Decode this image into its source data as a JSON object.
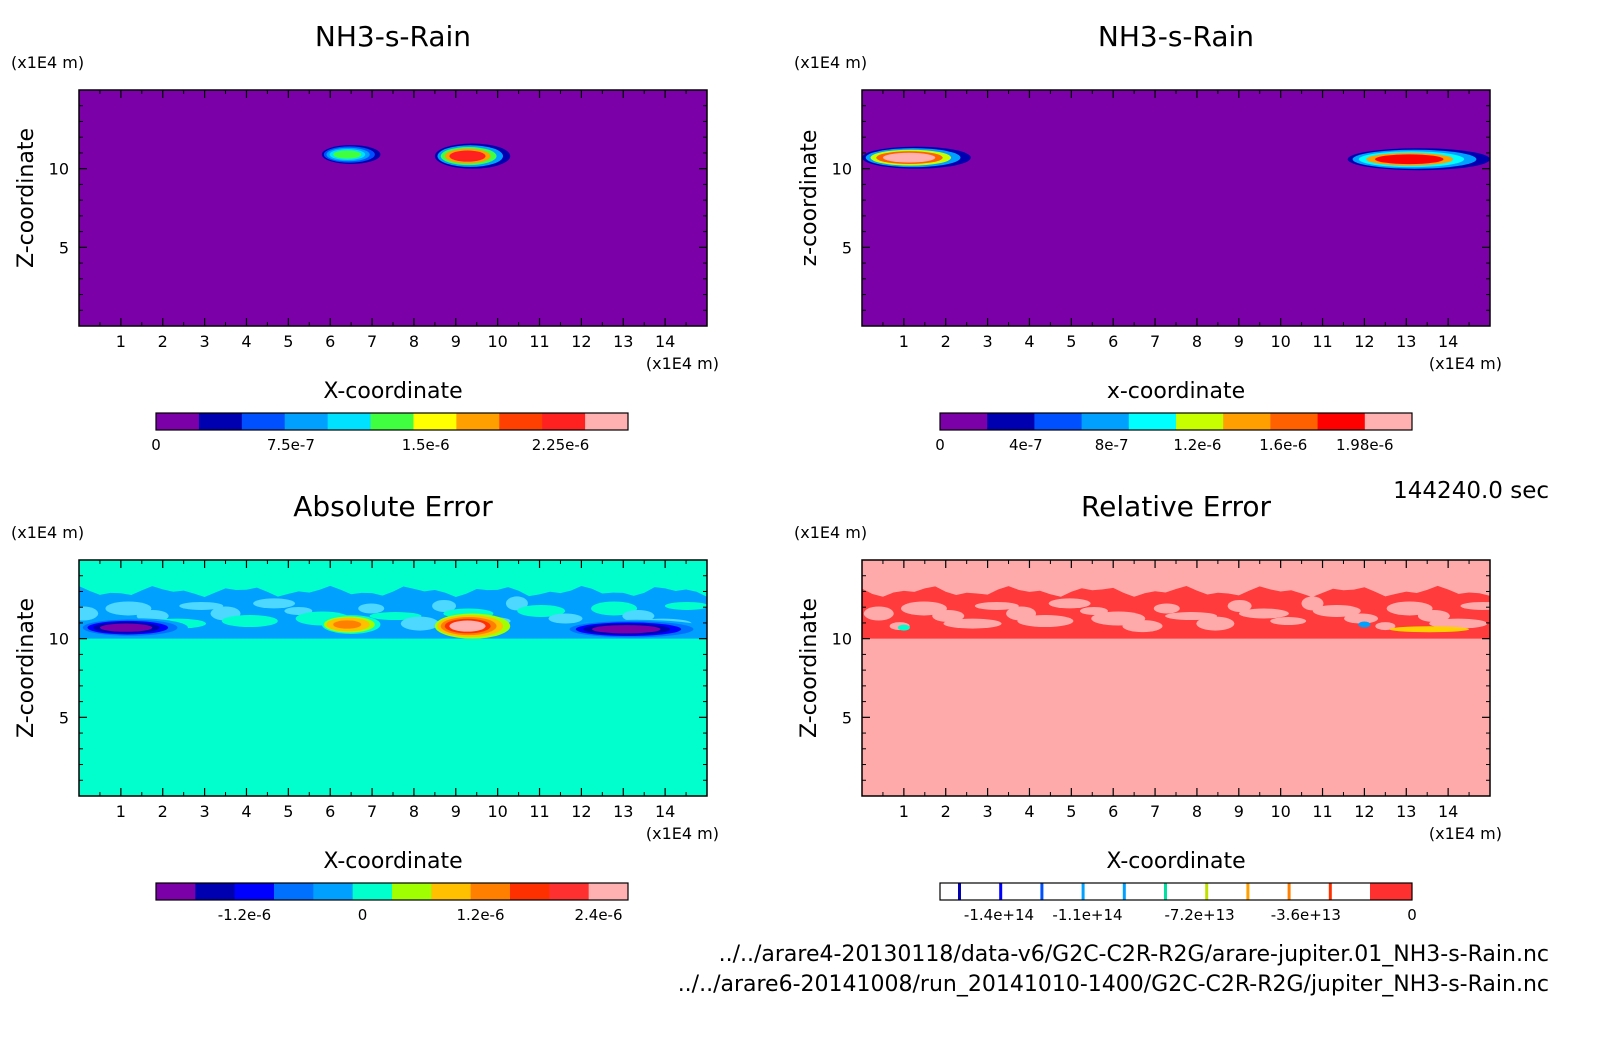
{
  "figure": {
    "timestamp": "144240.0 sec",
    "files": [
      "../../arare4-20130118/data-v6/G2C-C2R-R2G/arare-jupiter.01_NH3-s-Rain.nc",
      "../../arare6-20141008/run_20141010-1400/G2C-C2R-R2G/jupiter_NH3-s-Rain.nc"
    ]
  },
  "chart_data": [
    {
      "type": "heatmap",
      "title": "NH3-s-Rain",
      "xlabel": "X-coordinate",
      "ylabel": "Z-coordinate",
      "xunit": "(x1E4 m)",
      "yunit": "(x1E4 m)",
      "xlim": [
        0,
        15
      ],
      "ylim": [
        0,
        15
      ],
      "xticks": [
        "1",
        "2",
        "3",
        "4",
        "5",
        "6",
        "7",
        "8",
        "9",
        "10",
        "11",
        "12",
        "13",
        "14"
      ],
      "yticks": [
        "5",
        "10"
      ],
      "background": "#7b00a8",
      "colorbar": {
        "colors": [
          "#7b00a8",
          "#0000b0",
          "#0050ff",
          "#00a0ff",
          "#00e0ff",
          "#40ff40",
          "#ffff00",
          "#ffa000",
          "#ff4000",
          "#ff2020",
          "#ffb0b0"
        ],
        "labels": [
          "0",
          "7.5e-7",
          "1.5e-6",
          "2.25e-6"
        ],
        "label_values": [
          0,
          7.5e-07,
          1.5e-06,
          2.25e-06
        ],
        "range": [
          0,
          2.625e-06
        ]
      },
      "features": [
        {
          "kind": "plume",
          "x0": 5.8,
          "x1": 7.2,
          "z": 10.9,
          "thickness": 0.6,
          "peak": 1.2e-06
        },
        {
          "kind": "plume",
          "x0": 8.5,
          "x1": 10.3,
          "z": 10.8,
          "thickness": 0.8,
          "peak": 2.3e-06
        }
      ]
    },
    {
      "type": "heatmap",
      "title": "NH3-s-Rain",
      "xlabel": "x-coordinate",
      "ylabel": "z-coordinate",
      "xunit": "(x1E4 m)",
      "yunit": "(x1E4 m)",
      "xlim": [
        0,
        15
      ],
      "ylim": [
        0,
        15
      ],
      "xticks": [
        "1",
        "2",
        "3",
        "4",
        "5",
        "6",
        "7",
        "8",
        "9",
        "10",
        "11",
        "12",
        "13",
        "14"
      ],
      "yticks": [
        "5",
        "10"
      ],
      "background": "#7b00a8",
      "colorbar": {
        "colors": [
          "#7b00a8",
          "#0000b0",
          "#0050ff",
          "#00a0ff",
          "#00ffff",
          "#c8ff00",
          "#ffa000",
          "#ff6000",
          "#ff0000",
          "#ffb0b0"
        ],
        "labels": [
          "0",
          "4e-7",
          "8e-7",
          "1.2e-6",
          "1.6e-6",
          "1.98e-6"
        ],
        "label_values": [
          0,
          4e-07,
          8e-07,
          1.2e-06,
          1.6e-06,
          1.98e-06
        ],
        "range": [
          0,
          2.2e-06
        ]
      },
      "features": [
        {
          "kind": "plume",
          "x0": 0.0,
          "x1": 2.6,
          "z": 10.7,
          "thickness": 0.7,
          "peak": 2e-06
        },
        {
          "kind": "plume",
          "x0": 11.6,
          "x1": 15.0,
          "z": 10.6,
          "thickness": 0.7,
          "peak": 1.8e-06
        }
      ]
    },
    {
      "type": "heatmap",
      "title": "Absolute Error",
      "xlabel": "X-coordinate",
      "ylabel": "Z-coordinate",
      "xunit": "(x1E4 m)",
      "yunit": "(x1E4 m)",
      "xlim": [
        0,
        15
      ],
      "ylim": [
        0,
        15
      ],
      "xticks": [
        "1",
        "2",
        "3",
        "4",
        "5",
        "6",
        "7",
        "8",
        "9",
        "10",
        "11",
        "12",
        "13",
        "14"
      ],
      "yticks": [
        "5",
        "10"
      ],
      "background": "#00ffcc",
      "band": {
        "z0": 10.0,
        "z1": 13.0,
        "color": "#00a0ff",
        "secondary": "#0070ff"
      },
      "colorbar": {
        "colors": [
          "#7b00a8",
          "#0000b0",
          "#0000ff",
          "#0070ff",
          "#00a0ff",
          "#00ffcc",
          "#a0ff00",
          "#ffc000",
          "#ff8000",
          "#ff3000",
          "#ff3030",
          "#ffb0b0"
        ],
        "labels": [
          "-1.2e-6",
          "0",
          "1.2e-6",
          "2.4e-6"
        ],
        "label_values": [
          -1.2e-06,
          0,
          1.2e-06,
          2.4e-06
        ],
        "range": [
          -2.1e-06,
          2.7e-06
        ]
      },
      "features": [
        {
          "kind": "plume",
          "x0": 0.0,
          "x1": 2.6,
          "z": 10.7,
          "thickness": 0.6,
          "peak": -2e-06
        },
        {
          "kind": "plume",
          "x0": 11.6,
          "x1": 15.0,
          "z": 10.6,
          "thickness": 0.6,
          "peak": -1.8e-06
        },
        {
          "kind": "plume",
          "x0": 5.8,
          "x1": 7.2,
          "z": 10.9,
          "thickness": 0.6,
          "peak": 1.2e-06
        },
        {
          "kind": "plume",
          "x0": 8.5,
          "x1": 10.3,
          "z": 10.8,
          "thickness": 0.8,
          "peak": 2.3e-06
        }
      ]
    },
    {
      "type": "heatmap",
      "title": "Relative Error",
      "xlabel": "X-coordinate",
      "ylabel": "Z-coordinate",
      "xunit": "(x1E4 m)",
      "yunit": "(x1E4 m)",
      "xlim": [
        0,
        15
      ],
      "ylim": [
        0,
        15
      ],
      "xticks": [
        "1",
        "2",
        "3",
        "4",
        "5",
        "6",
        "7",
        "8",
        "9",
        "10",
        "11",
        "12",
        "13",
        "14"
      ],
      "yticks": [
        "5",
        "10"
      ],
      "background": "#ffaaaa",
      "band": {
        "z0": 10.0,
        "z1": 13.0,
        "color": "#ff3b3b",
        "secondary": "#ff3b3b"
      },
      "colorbar": {
        "style": "lines",
        "fill": "#ffffff",
        "end_color": "#ff3030",
        "line_colors": [
          "#0000b0",
          "#0000ff",
          "#0050ff",
          "#00a0ff",
          "#00a0ff",
          "#00e0a0",
          "#c0e000",
          "#ffa000",
          "#ff8000",
          "#ff3000"
        ],
        "labels": [
          "-1.4e+14",
          "-1.1e+14",
          "-7.2e+13",
          "-3.6e+13",
          "0"
        ],
        "label_values": [
          -140000000000000.0,
          -110000000000000.0,
          -72000000000000.0,
          -36000000000000.0,
          0
        ],
        "range": [
          -160000000000000.0,
          0
        ]
      },
      "features": [
        {
          "kind": "spot",
          "x": 1.0,
          "z": 10.7,
          "color": "#00ffcc"
        },
        {
          "kind": "spot",
          "x": 12.0,
          "z": 10.9,
          "color": "#00a0ff"
        },
        {
          "kind": "streak",
          "x0": 12.6,
          "x1": 14.5,
          "z": 10.6,
          "color": "#ffd000"
        }
      ]
    }
  ]
}
